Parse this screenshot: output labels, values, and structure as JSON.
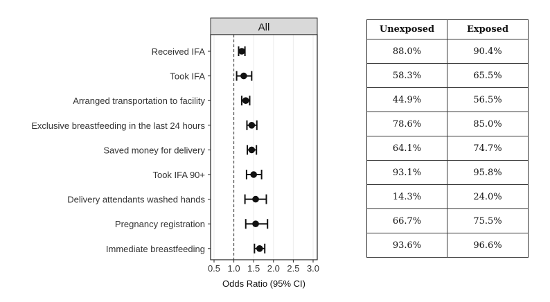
{
  "chart_data": {
    "type": "scatter",
    "panel_label": "All",
    "xlabel": "Odds Ratio (95% CI)",
    "xlim": [
      0.5,
      3.0
    ],
    "xticks": [
      "0.5",
      "1.0",
      "1.5",
      "2.0",
      "2.5",
      "3.0"
    ],
    "reference_line": 1.0,
    "grid": true,
    "rows": [
      {
        "label": "Received IFA",
        "or": 1.2,
        "lo": 1.12,
        "hi": 1.28
      },
      {
        "label": "Took IFA",
        "or": 1.25,
        "lo": 1.07,
        "hi": 1.45
      },
      {
        "label": "Arranged transportation to facility",
        "or": 1.3,
        "lo": 1.2,
        "hi": 1.4
      },
      {
        "label": "Exclusive breastfeeding in the last 24 hours",
        "or": 1.45,
        "lo": 1.33,
        "hi": 1.58
      },
      {
        "label": "Saved money for delivery",
        "or": 1.45,
        "lo": 1.34,
        "hi": 1.57
      },
      {
        "label": "Took IFA 90+",
        "or": 1.5,
        "lo": 1.32,
        "hi": 1.7
      },
      {
        "label": "Delivery attendants washed hands",
        "or": 1.55,
        "lo": 1.28,
        "hi": 1.82
      },
      {
        "label": "Pregnancy registration",
        "or": 1.55,
        "lo": 1.3,
        "hi": 1.85
      },
      {
        "label": "Immediate breastfeeding",
        "or": 1.65,
        "lo": 1.52,
        "hi": 1.78
      }
    ]
  },
  "table": {
    "headers": [
      "Unexposed",
      "Exposed"
    ],
    "rows": [
      [
        "88.0%",
        "90.4%"
      ],
      [
        "58.3%",
        "65.5%"
      ],
      [
        "44.9%",
        "56.5%"
      ],
      [
        "78.6%",
        "85.0%"
      ],
      [
        "64.1%",
        "74.7%"
      ],
      [
        "93.1%",
        "95.8%"
      ],
      [
        "14.3%",
        "24.0%"
      ],
      [
        "66.7%",
        "75.5%"
      ],
      [
        "93.6%",
        "96.6%"
      ]
    ]
  }
}
